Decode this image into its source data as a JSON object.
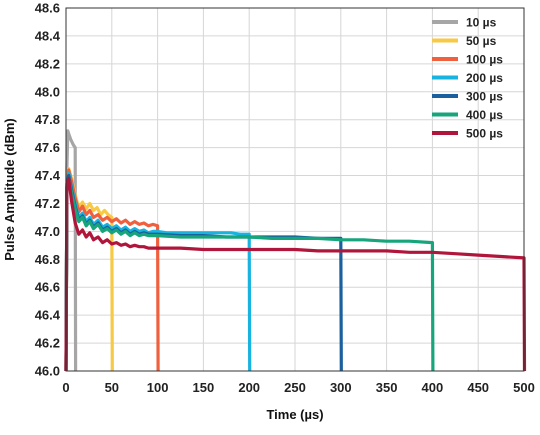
{
  "chart_data": {
    "type": "line",
    "title": "",
    "xlabel": "Time (µs)",
    "ylabel": "Pulse Amplitude (dBm)",
    "xlim": [
      0,
      500
    ],
    "ylim": [
      46.0,
      48.6
    ],
    "x_ticks": [
      0,
      50,
      100,
      150,
      200,
      250,
      300,
      350,
      400,
      450,
      500
    ],
    "y_ticks": [
      46.0,
      46.2,
      46.4,
      46.6,
      46.8,
      47.0,
      47.2,
      47.4,
      47.6,
      47.8,
      48.0,
      48.2,
      48.4,
      48.6
    ],
    "y_tick_labels": [
      "46.0",
      "46.2",
      "46.4",
      "46.6",
      "46.8",
      "47.0",
      "47.2",
      "47.4",
      "47.6",
      "47.8",
      "48.0",
      "48.2",
      "48.4",
      "48.6"
    ],
    "grid": true,
    "legend_position": "top-right",
    "series": [
      {
        "name": "10 µs",
        "color": "#a6a6a6",
        "x": [
          0,
          1,
          2,
          3,
          5,
          8,
          10,
          10.5
        ],
        "y": [
          46.0,
          47.45,
          47.72,
          47.7,
          47.66,
          47.62,
          47.6,
          46.0
        ]
      },
      {
        "name": "50 µs",
        "color": "#f7c944",
        "x": [
          0,
          1,
          3,
          6,
          10,
          14,
          18,
          22,
          26,
          30,
          34,
          38,
          42,
          46,
          50,
          50.5
        ],
        "y": [
          46.0,
          47.3,
          47.45,
          47.38,
          47.26,
          47.17,
          47.21,
          47.16,
          47.2,
          47.15,
          47.17,
          47.12,
          47.15,
          47.12,
          47.1,
          46.0
        ]
      },
      {
        "name": "100 µs",
        "color": "#f05f3e",
        "x": [
          0,
          1,
          3,
          6,
          10,
          14,
          18,
          22,
          26,
          30,
          35,
          40,
          45,
          50,
          55,
          60,
          65,
          70,
          75,
          80,
          85,
          90,
          95,
          100,
          100.5
        ],
        "y": [
          46.0,
          47.3,
          47.44,
          47.36,
          47.24,
          47.14,
          47.18,
          47.12,
          47.15,
          47.1,
          47.12,
          47.08,
          47.1,
          47.07,
          47.09,
          47.06,
          47.08,
          47.05,
          47.07,
          47.05,
          47.06,
          47.04,
          47.05,
          47.04,
          46.0
        ]
      },
      {
        "name": "200 µs",
        "color": "#19b3e0",
        "x": [
          0,
          1,
          3,
          6,
          10,
          14,
          18,
          22,
          26,
          30,
          35,
          40,
          45,
          50,
          55,
          60,
          65,
          70,
          75,
          80,
          85,
          90,
          95,
          100,
          110,
          120,
          130,
          140,
          150,
          160,
          170,
          180,
          190,
          200,
          200.5
        ],
        "y": [
          46.0,
          47.32,
          47.42,
          47.32,
          47.2,
          47.1,
          47.13,
          47.07,
          47.1,
          47.05,
          47.08,
          47.03,
          47.05,
          47.02,
          47.04,
          47.01,
          47.03,
          47.0,
          47.02,
          47.0,
          47.01,
          46.99,
          47.0,
          47.0,
          46.99,
          46.99,
          46.99,
          46.99,
          46.99,
          46.99,
          46.99,
          46.99,
          46.98,
          46.98,
          46.0
        ]
      },
      {
        "name": "300 µs",
        "color": "#1a5f9e",
        "x": [
          0,
          1,
          3,
          6,
          10,
          14,
          18,
          22,
          26,
          30,
          35,
          40,
          45,
          50,
          55,
          60,
          65,
          70,
          75,
          80,
          85,
          90,
          95,
          100,
          125,
          150,
          175,
          200,
          225,
          250,
          275,
          300,
          300.5
        ],
        "y": [
          46.0,
          47.32,
          47.4,
          47.3,
          47.18,
          47.08,
          47.11,
          47.05,
          47.08,
          47.03,
          47.06,
          47.01,
          47.03,
          47.0,
          47.02,
          46.99,
          47.01,
          46.98,
          47.0,
          46.98,
          46.99,
          46.98,
          46.98,
          46.98,
          46.97,
          46.97,
          46.96,
          46.96,
          46.96,
          46.96,
          46.95,
          46.95,
          46.0
        ]
      },
      {
        "name": "400 µs",
        "color": "#17a57c",
        "x": [
          0,
          1,
          3,
          6,
          10,
          14,
          18,
          22,
          26,
          30,
          35,
          40,
          45,
          50,
          55,
          60,
          65,
          70,
          75,
          80,
          85,
          90,
          95,
          100,
          125,
          150,
          175,
          200,
          225,
          250,
          275,
          300,
          325,
          350,
          375,
          400,
          400.5
        ],
        "y": [
          46.0,
          47.3,
          47.38,
          47.28,
          47.16,
          47.07,
          47.1,
          47.04,
          47.07,
          47.02,
          47.05,
          47.0,
          47.02,
          46.99,
          47.01,
          46.98,
          47.0,
          46.97,
          46.99,
          46.97,
          46.98,
          46.97,
          46.97,
          46.97,
          46.96,
          46.96,
          46.96,
          46.96,
          46.95,
          46.95,
          46.95,
          46.94,
          46.94,
          46.93,
          46.93,
          46.92,
          46.0
        ]
      },
      {
        "name": "500 µs",
        "color": "#b0163b",
        "x": [
          0,
          1,
          3,
          6,
          10,
          14,
          18,
          22,
          26,
          30,
          35,
          40,
          45,
          50,
          55,
          60,
          65,
          70,
          75,
          80,
          85,
          90,
          95,
          100,
          125,
          150,
          175,
          200,
          225,
          250,
          275,
          300,
          325,
          350,
          375,
          400,
          425,
          450,
          475,
          500,
          500.5
        ],
        "y": [
          46.0,
          47.34,
          47.38,
          47.22,
          47.06,
          46.98,
          47.01,
          46.96,
          46.99,
          46.94,
          46.96,
          46.92,
          46.94,
          46.91,
          46.92,
          46.9,
          46.91,
          46.89,
          46.9,
          46.89,
          46.89,
          46.88,
          46.88,
          46.88,
          46.88,
          46.87,
          46.87,
          46.87,
          46.87,
          46.87,
          46.86,
          46.86,
          46.86,
          46.86,
          46.85,
          46.85,
          46.84,
          46.83,
          46.82,
          46.81,
          46.0
        ]
      }
    ]
  }
}
